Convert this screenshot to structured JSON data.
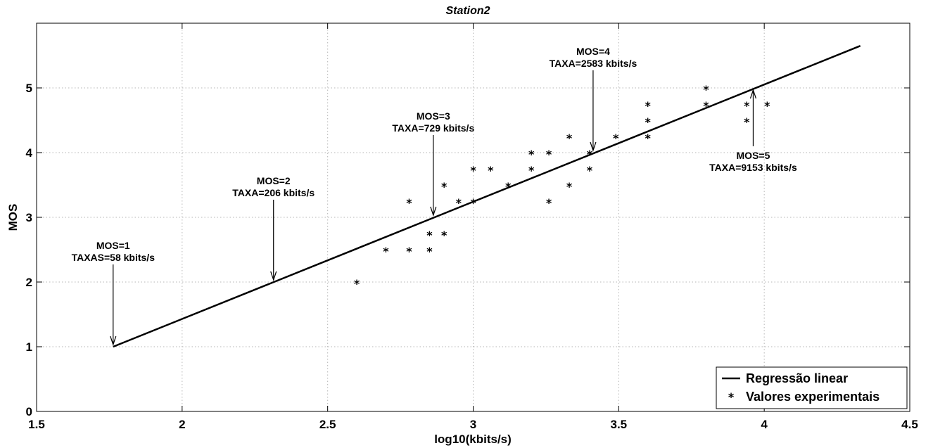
{
  "chart_data": {
    "type": "scatter",
    "title": "Station2",
    "xlabel": "log10(kbits/s)",
    "ylabel": "MOS",
    "xlim": [
      1.5,
      4.5
    ],
    "ylim": [
      0,
      6
    ],
    "xticks": [
      1.5,
      2,
      2.5,
      3,
      3.5,
      4,
      4.5
    ],
    "xtick_labels": [
      "1.5",
      "2",
      "2.5",
      "3",
      "3.5",
      "4",
      "4.5"
    ],
    "yticks": [
      0,
      1,
      2,
      3,
      4,
      5
    ],
    "ytick_labels": [
      "0",
      "1",
      "2",
      "3",
      "4",
      "5"
    ],
    "grid": true,
    "legend_position": "bottom-right",
    "series": [
      {
        "name": "Regressão linear",
        "type": "line",
        "color": "#000000",
        "x": [
          1.763,
          4.33
        ],
        "y": [
          1.0,
          5.65
        ]
      },
      {
        "name": "Valores experimentais",
        "type": "scatter",
        "marker": "*",
        "color": "#000000",
        "x": [
          2.6,
          2.7,
          2.78,
          2.78,
          2.85,
          2.85,
          2.9,
          2.9,
          2.95,
          3.0,
          3.0,
          3.06,
          3.12,
          3.2,
          3.2,
          3.26,
          3.26,
          3.33,
          3.33,
          3.4,
          3.4,
          3.49,
          3.6,
          3.6,
          3.6,
          3.8,
          3.8,
          3.94,
          3.94,
          4.01
        ],
        "y": [
          2.0,
          2.5,
          2.5,
          3.25,
          2.5,
          2.75,
          2.75,
          3.5,
          3.25,
          3.25,
          3.75,
          3.75,
          3.5,
          3.75,
          4.0,
          3.25,
          4.0,
          3.5,
          4.25,
          3.75,
          4.0,
          4.25,
          4.25,
          4.5,
          4.75,
          4.75,
          5.0,
          4.5,
          4.75,
          4.75
        ]
      }
    ],
    "annotations": [
      {
        "lines": [
          "MOS=1",
          "TAXAS=58 kbits/s"
        ],
        "x": 1.763,
        "y": 1.0,
        "side": "above"
      },
      {
        "lines": [
          "MOS=2",
          "TAXA=206 kbits/s"
        ],
        "x": 2.314,
        "y": 2.0,
        "side": "above"
      },
      {
        "lines": [
          "MOS=3",
          "TAXA=729 kbits/s"
        ],
        "x": 2.863,
        "y": 3.0,
        "side": "above"
      },
      {
        "lines": [
          "MOS=4",
          "TAXA=2583 kbits/s"
        ],
        "x": 3.412,
        "y": 4.0,
        "side": "above"
      },
      {
        "lines": [
          "MOS=5",
          "TAXA=9153 kbits/s"
        ],
        "x": 3.962,
        "y": 5.0,
        "side": "below"
      }
    ]
  }
}
